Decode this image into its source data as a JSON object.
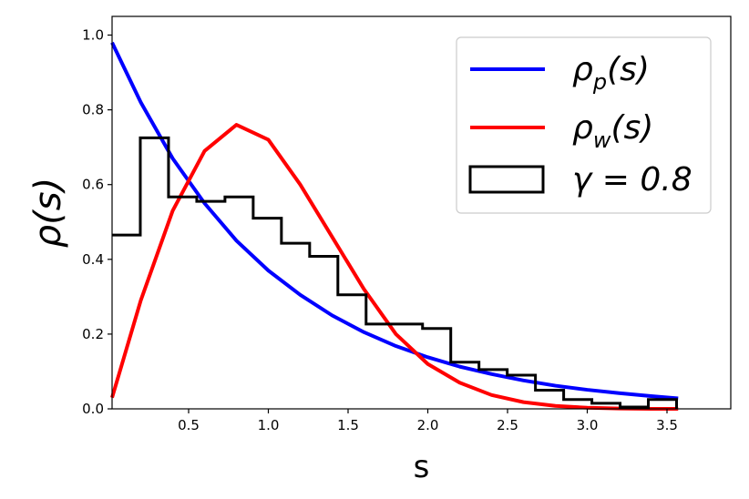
{
  "chart_data": {
    "type": "line",
    "xlabel": "s",
    "ylabel": "ρ(s)",
    "xlim": [
      0.02,
      3.9
    ],
    "ylim": [
      0.0,
      1.05
    ],
    "xticks": [
      0.5,
      1.0,
      1.5,
      2.0,
      2.5,
      3.0,
      3.5
    ],
    "xtick_labels": [
      "0.5",
      "1.0",
      "1.5",
      "2.0",
      "2.5",
      "3.0",
      "3.5"
    ],
    "yticks": [
      0.0,
      0.2,
      0.4,
      0.6,
      0.8,
      1.0
    ],
    "ytick_labels": [
      "0.0",
      "0.2",
      "0.4",
      "0.6",
      "0.8",
      "1.0"
    ],
    "legend_position": "top-right",
    "series": [
      {
        "name": "ρp(s)",
        "legend": {
          "base": "ρ",
          "sub": "p",
          "tail": "(s)"
        },
        "kind": "line",
        "color": "#0000ff",
        "x": [
          0.02,
          0.2,
          0.4,
          0.6,
          0.8,
          1.0,
          1.2,
          1.4,
          1.6,
          1.8,
          2.0,
          2.2,
          2.4,
          2.6,
          2.8,
          3.0,
          3.2,
          3.4,
          3.57
        ],
        "y": [
          0.98,
          0.82,
          0.67,
          0.55,
          0.45,
          0.37,
          0.305,
          0.25,
          0.205,
          0.168,
          0.138,
          0.113,
          0.093,
          0.076,
          0.062,
          0.051,
          0.042,
          0.034,
          0.028
        ]
      },
      {
        "name": "ρw(s)",
        "legend": {
          "base": "ρ",
          "sub": "w",
          "tail": "(s)"
        },
        "kind": "line",
        "color": "#ff0000",
        "x": [
          0.02,
          0.2,
          0.4,
          0.6,
          0.8,
          1.0,
          1.2,
          1.4,
          1.6,
          1.8,
          2.0,
          2.2,
          2.4,
          2.6,
          2.8,
          3.0,
          3.2,
          3.4,
          3.57
        ],
        "y": [
          0.03,
          0.29,
          0.53,
          0.69,
          0.76,
          0.72,
          0.6,
          0.46,
          0.32,
          0.2,
          0.12,
          0.07,
          0.037,
          0.018,
          0.008,
          0.003,
          0.001,
          0.0,
          0.0
        ]
      },
      {
        "name": "γ = 0.8",
        "legend": {
          "base": "γ = 0.8",
          "sub": "",
          "tail": ""
        },
        "kind": "step-histogram",
        "color": "#000000",
        "bin_edges": [
          0.02,
          0.197,
          0.374,
          0.551,
          0.728,
          0.905,
          1.082,
          1.259,
          1.436,
          1.613,
          1.79,
          1.967,
          2.144,
          2.321,
          2.498,
          2.675,
          2.852,
          3.029,
          3.206,
          3.383,
          3.56
        ],
        "values": [
          0.465,
          0.725,
          0.567,
          0.555,
          0.567,
          0.51,
          0.443,
          0.408,
          0.305,
          0.227,
          0.227,
          0.215,
          0.125,
          0.105,
          0.09,
          0.05,
          0.025,
          0.015,
          0.005,
          0.025
        ]
      }
    ]
  }
}
